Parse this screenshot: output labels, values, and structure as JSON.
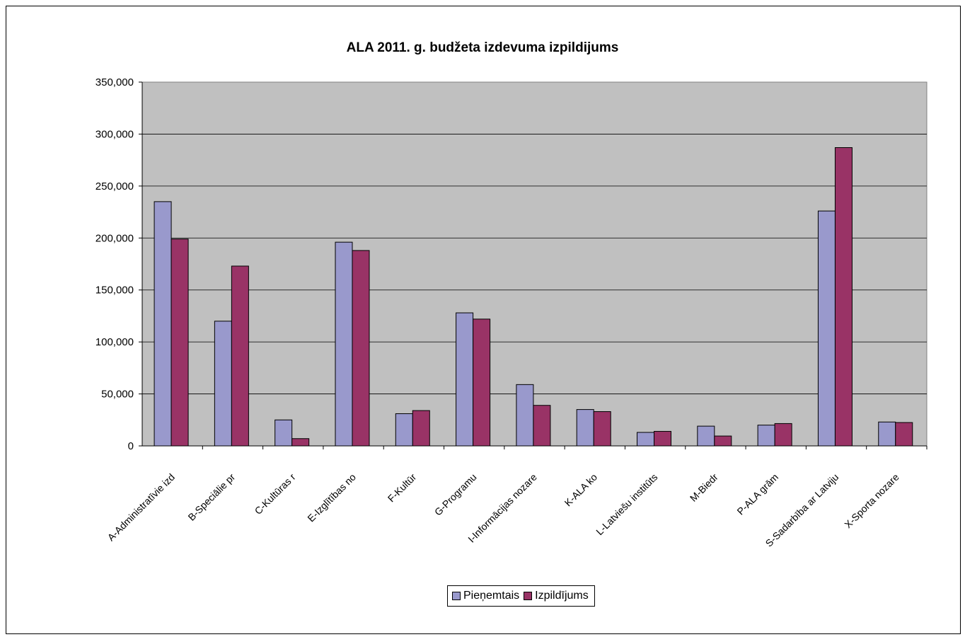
{
  "chart_data": {
    "type": "bar",
    "title": "ALA 2011. g. budžeta izdevuma izpildijums",
    "xlabel": "",
    "ylabel": "",
    "ylim": [
      0,
      350000
    ],
    "yticks": [
      0,
      50000,
      100000,
      150000,
      200000,
      250000,
      300000,
      350000
    ],
    "ytick_labels": [
      "0",
      "50,000",
      "100,000",
      "150,000",
      "200,000",
      "250,000",
      "300,000",
      "350,000"
    ],
    "grid": true,
    "legend_position": "bottom",
    "plot_background": "#c0c0c0",
    "categories": [
      "A-Administratīvie izd",
      "B-Speciālie pr",
      "C-Kultūras r",
      "E-Izglītības no",
      "F-Kultūr",
      "G-Programu",
      "I-Informācijas nozare",
      "K-ALA ko",
      "L-Latviešu institūts",
      "M-Biedr",
      "P-ALA grām",
      "S-Sadarbība ar Latviju",
      "X-Sporta nozare"
    ],
    "series": [
      {
        "name": "Pieņemtais",
        "color": "#9999cc",
        "values": [
          235000,
          120000,
          25000,
          196000,
          31000,
          128000,
          59000,
          35000,
          13000,
          19000,
          20000,
          226000,
          23000
        ]
      },
      {
        "name": "Izpildījums",
        "color": "#993366",
        "values": [
          199000,
          173000,
          7000,
          188000,
          34000,
          122000,
          39000,
          33000,
          14000,
          9500,
          21500,
          287000,
          22500
        ]
      }
    ]
  }
}
